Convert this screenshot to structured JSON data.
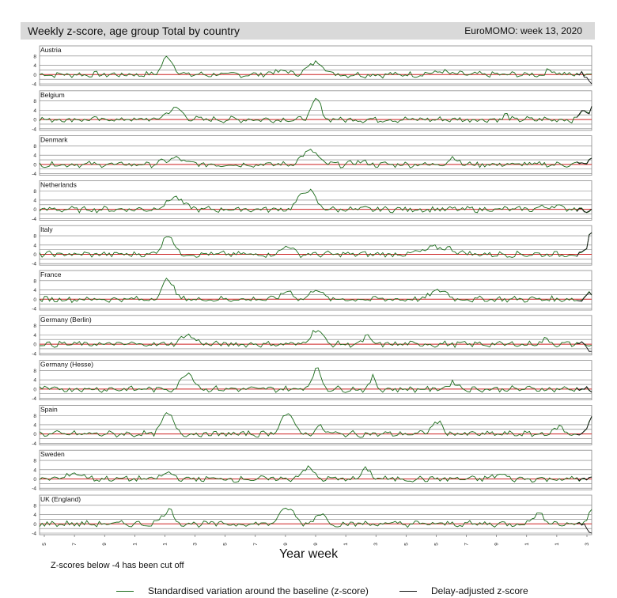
{
  "header": {
    "title": "Weekly z-score, age group Total by country",
    "week_label": "EuroMOMO: week 13, 2020"
  },
  "footer": {
    "xaxis_title": "Year week",
    "cutoff_note": "Z-scores below -4 has been cut off"
  },
  "legend": [
    {
      "label": "Standardised variation around the baseline (z-score)",
      "color": "#1a6b1a"
    },
    {
      "label": "Delay-adjusted z-score",
      "color": "#111111"
    }
  ],
  "chart_data": {
    "type": "line",
    "title": "Weekly z-score, age group Total by country",
    "xlabel": "Year week",
    "ylabel": "",
    "ylim": [
      -4,
      10
    ],
    "y_ticks": [
      "8",
      "4",
      "0",
      "-4"
    ],
    "reference_lines": [
      -4,
      -2,
      0,
      2,
      4,
      8
    ],
    "x_ticks": [
      "2016-05",
      "2016-17",
      "2016-29",
      "2016-41",
      "2017-01",
      "2017-13",
      "2017-25",
      "2017-37",
      "2017-49",
      "2018-09",
      "2018-21",
      "2018-33",
      "2018-45",
      "2019-05",
      "2019-17",
      "2019-29",
      "2019-41",
      "2020-01",
      "2020-13"
    ],
    "series_colors": {
      "zscore": "#1a6b1a",
      "delay_adjusted": "#111111",
      "baseline": "#cc2222"
    },
    "countries": [
      {
        "name": "Austria",
        "peaks": [
          [
            2017.05,
            7.5,
            0.06
          ],
          [
            2018.17,
            5.5,
            0.08
          ],
          [
            2017.9,
            1.5,
            0.1
          ],
          [
            2019.1,
            1.2,
            0.1
          ],
          [
            2019.95,
            2,
            0.05
          ]
        ],
        "end": 1,
        "delay_end": -3
      },
      {
        "name": "Belgium",
        "peaks": [
          [
            2017.1,
            4.8,
            0.08
          ],
          [
            2018.17,
            8.5,
            0.05
          ],
          [
            2019.6,
            2.5,
            0.02
          ],
          [
            2020.18,
            4,
            0.03
          ]
        ],
        "end": 5,
        "delay_end": 5
      },
      {
        "name": "Denmark",
        "peaks": [
          [
            2017.1,
            2.5,
            0.1
          ],
          [
            2018.12,
            6,
            0.08
          ],
          [
            2018.5,
            1.5,
            0.05
          ],
          [
            2019.2,
            3,
            0.05
          ]
        ],
        "end": 2,
        "delay_end": 2
      },
      {
        "name": "Netherlands",
        "peaks": [
          [
            2017.1,
            5,
            0.09
          ],
          [
            2018.1,
            8.5,
            0.08
          ],
          [
            2019.95,
            1.5,
            0.1
          ]
        ],
        "end": -1,
        "delay_end": -1
      },
      {
        "name": "Italy",
        "peaks": [
          [
            2017.05,
            8.5,
            0.06
          ],
          [
            2017.95,
            4,
            0.05
          ],
          [
            2019.1,
            3,
            0.15
          ]
        ],
        "end": 10,
        "delay_end": 10
      },
      {
        "name": "France",
        "peaks": [
          [
            2017.05,
            8.5,
            0.06
          ],
          [
            2017.95,
            3.5,
            0.06
          ],
          [
            2018.17,
            5,
            0.05
          ],
          [
            2019.1,
            4,
            0.08
          ]
        ],
        "end": 3,
        "delay_end": 3
      },
      {
        "name": "Germany (Berlin)",
        "peaks": [
          [
            2017.2,
            4,
            0.07
          ],
          [
            2018.17,
            6.5,
            0.06
          ],
          [
            2018.55,
            4,
            0.03
          ],
          [
            2019.9,
            2,
            0.05
          ]
        ],
        "end": 0,
        "delay_end": -3
      },
      {
        "name": "Germany (Hesse)",
        "peaks": [
          [
            2017.2,
            7.5,
            0.06
          ],
          [
            2018.17,
            8.5,
            0.05
          ],
          [
            2018.6,
            5,
            0.03
          ],
          [
            2019.2,
            3,
            0.05
          ]
        ],
        "end": 0,
        "delay_end": 0
      },
      {
        "name": "Spain",
        "peaks": [
          [
            2017.05,
            9,
            0.06
          ],
          [
            2017.95,
            8.5,
            0.07
          ],
          [
            2018.2,
            3,
            0.05
          ],
          [
            2019.08,
            5,
            0.06
          ],
          [
            2020.0,
            3,
            0.05
          ]
        ],
        "end": 8,
        "delay_end": 8
      },
      {
        "name": "Sweden",
        "peaks": [
          [
            2016.35,
            2.5,
            0.08
          ],
          [
            2017.05,
            3,
            0.05
          ],
          [
            2018.1,
            5,
            0.06
          ],
          [
            2018.55,
            4,
            0.05
          ],
          [
            2019.55,
            2,
            0.06
          ]
        ],
        "end": 0,
        "delay_end": 0
      },
      {
        "name": "UK (England)",
        "peaks": [
          [
            2017.05,
            6,
            0.06
          ],
          [
            2017.95,
            7,
            0.07
          ],
          [
            2018.2,
            5,
            0.05
          ],
          [
            2019.85,
            4,
            0.07
          ]
        ],
        "end": 7,
        "delay_end": -4
      }
    ]
  }
}
